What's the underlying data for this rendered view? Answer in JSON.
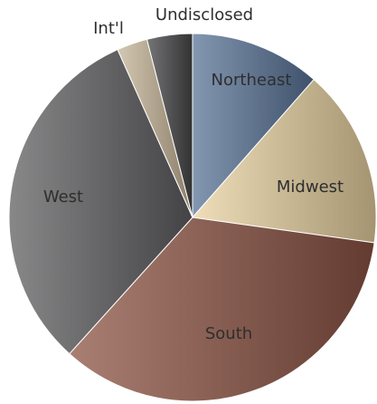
{
  "chart_data": {
    "type": "pie",
    "categories": [
      "Northeast",
      "Midwest",
      "South",
      "West",
      "Int'l",
      "Undisclosed"
    ],
    "values": [
      11.5,
      15.7,
      34.5,
      31.6,
      2.7,
      4.0
    ],
    "colors": [
      "#5a7497",
      "#ead3a2",
      "#8e5444",
      "#606062",
      "#c6b698",
      "#474749"
    ]
  }
}
